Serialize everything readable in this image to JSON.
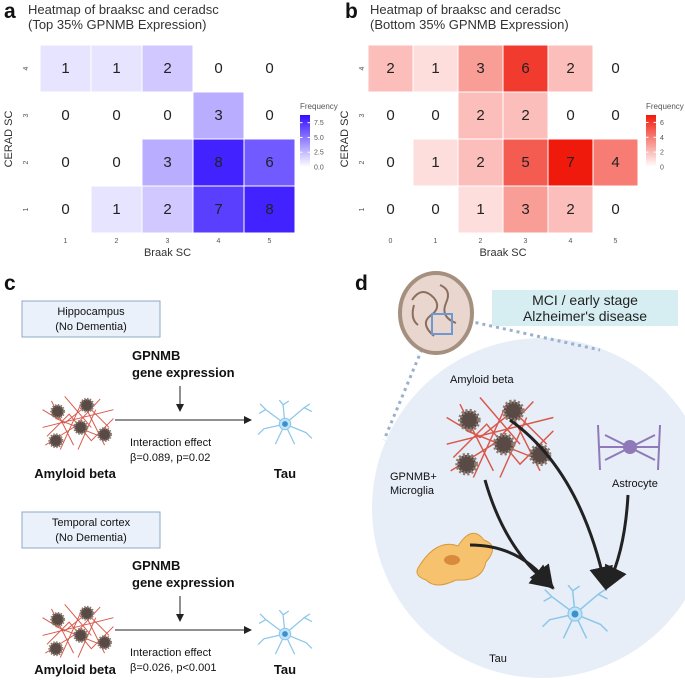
{
  "chart_data": [
    {
      "type": "heatmap",
      "panel": "a",
      "title": "Heatmap of braaksc and ceradsc",
      "subtitle": "(Top 35% GPNMB Expression)",
      "x_label": "Braak SC",
      "y_label": "CERAD SC",
      "x_categories": [
        "1",
        "2",
        "3",
        "4",
        "5"
      ],
      "y_categories": [
        "1",
        "2",
        "3",
        "4"
      ],
      "values": [
        [
          0,
          1,
          2,
          7,
          8
        ],
        [
          0,
          0,
          3,
          8,
          6
        ],
        [
          0,
          0,
          0,
          3,
          0
        ],
        [
          1,
          1,
          2,
          0,
          0
        ]
      ],
      "legend_title": "Frequency",
      "clim": [
        0,
        8.8
      ],
      "cticks": [
        {
          "value": 0,
          "label": "0.0"
        },
        {
          "value": 2.5,
          "label": "2.5"
        },
        {
          "value": 5,
          "label": "5.0"
        },
        {
          "value": 7.5,
          "label": "7.5"
        }
      ],
      "color_low": "#ffffff",
      "color_high": "#2f0dff"
    },
    {
      "type": "heatmap",
      "panel": "b",
      "title": "Heatmap of braaksc and ceradsc",
      "subtitle": "(Bottom 35% GPNMB Expression)",
      "x_label": "Braak SC",
      "y_label": "CERAD SC",
      "x_categories": [
        "0",
        "1",
        "2",
        "3",
        "4",
        "5"
      ],
      "y_categories": [
        "1",
        "2",
        "3",
        "4"
      ],
      "values": [
        [
          0,
          0,
          1,
          3,
          2,
          0
        ],
        [
          0,
          1,
          2,
          5,
          7,
          4
        ],
        [
          0,
          0,
          2,
          2,
          0,
          0
        ],
        [
          2,
          1,
          3,
          6,
          2,
          0
        ]
      ],
      "legend_title": "Frequency",
      "clim": [
        0,
        7
      ],
      "cticks": [
        0,
        2,
        4,
        6
      ],
      "color_low": "#ffffff",
      "color_high": "#f01a0c"
    }
  ],
  "panel_c": {
    "label": "c",
    "rows": [
      {
        "region": "Hippocampus",
        "condition": "(No Dementia)",
        "gene": "GPNMB",
        "gene_line2": "gene expression",
        "effect": "Interaction effect",
        "stats": "β=0.089, p=0.02",
        "source": "Amyloid beta",
        "target": "Tau"
      },
      {
        "region": "Temporal cortex",
        "condition": "(No Dementia)",
        "gene": "GPNMB",
        "gene_line2": "gene expression",
        "effect": "Interaction effect",
        "stats": "β=0.026, p<0.001",
        "source": "Amyloid beta",
        "target": "Tau"
      }
    ]
  },
  "panel_d": {
    "label": "d",
    "stage_line1": "MCI / early stage",
    "stage_line2": "Alzheimer's disease",
    "amyloid": "Amyloid beta",
    "microglia_line1": "GPNMB+",
    "microglia_line2": "Microglia",
    "astrocyte": "Astrocyte",
    "tau": "Tau"
  }
}
